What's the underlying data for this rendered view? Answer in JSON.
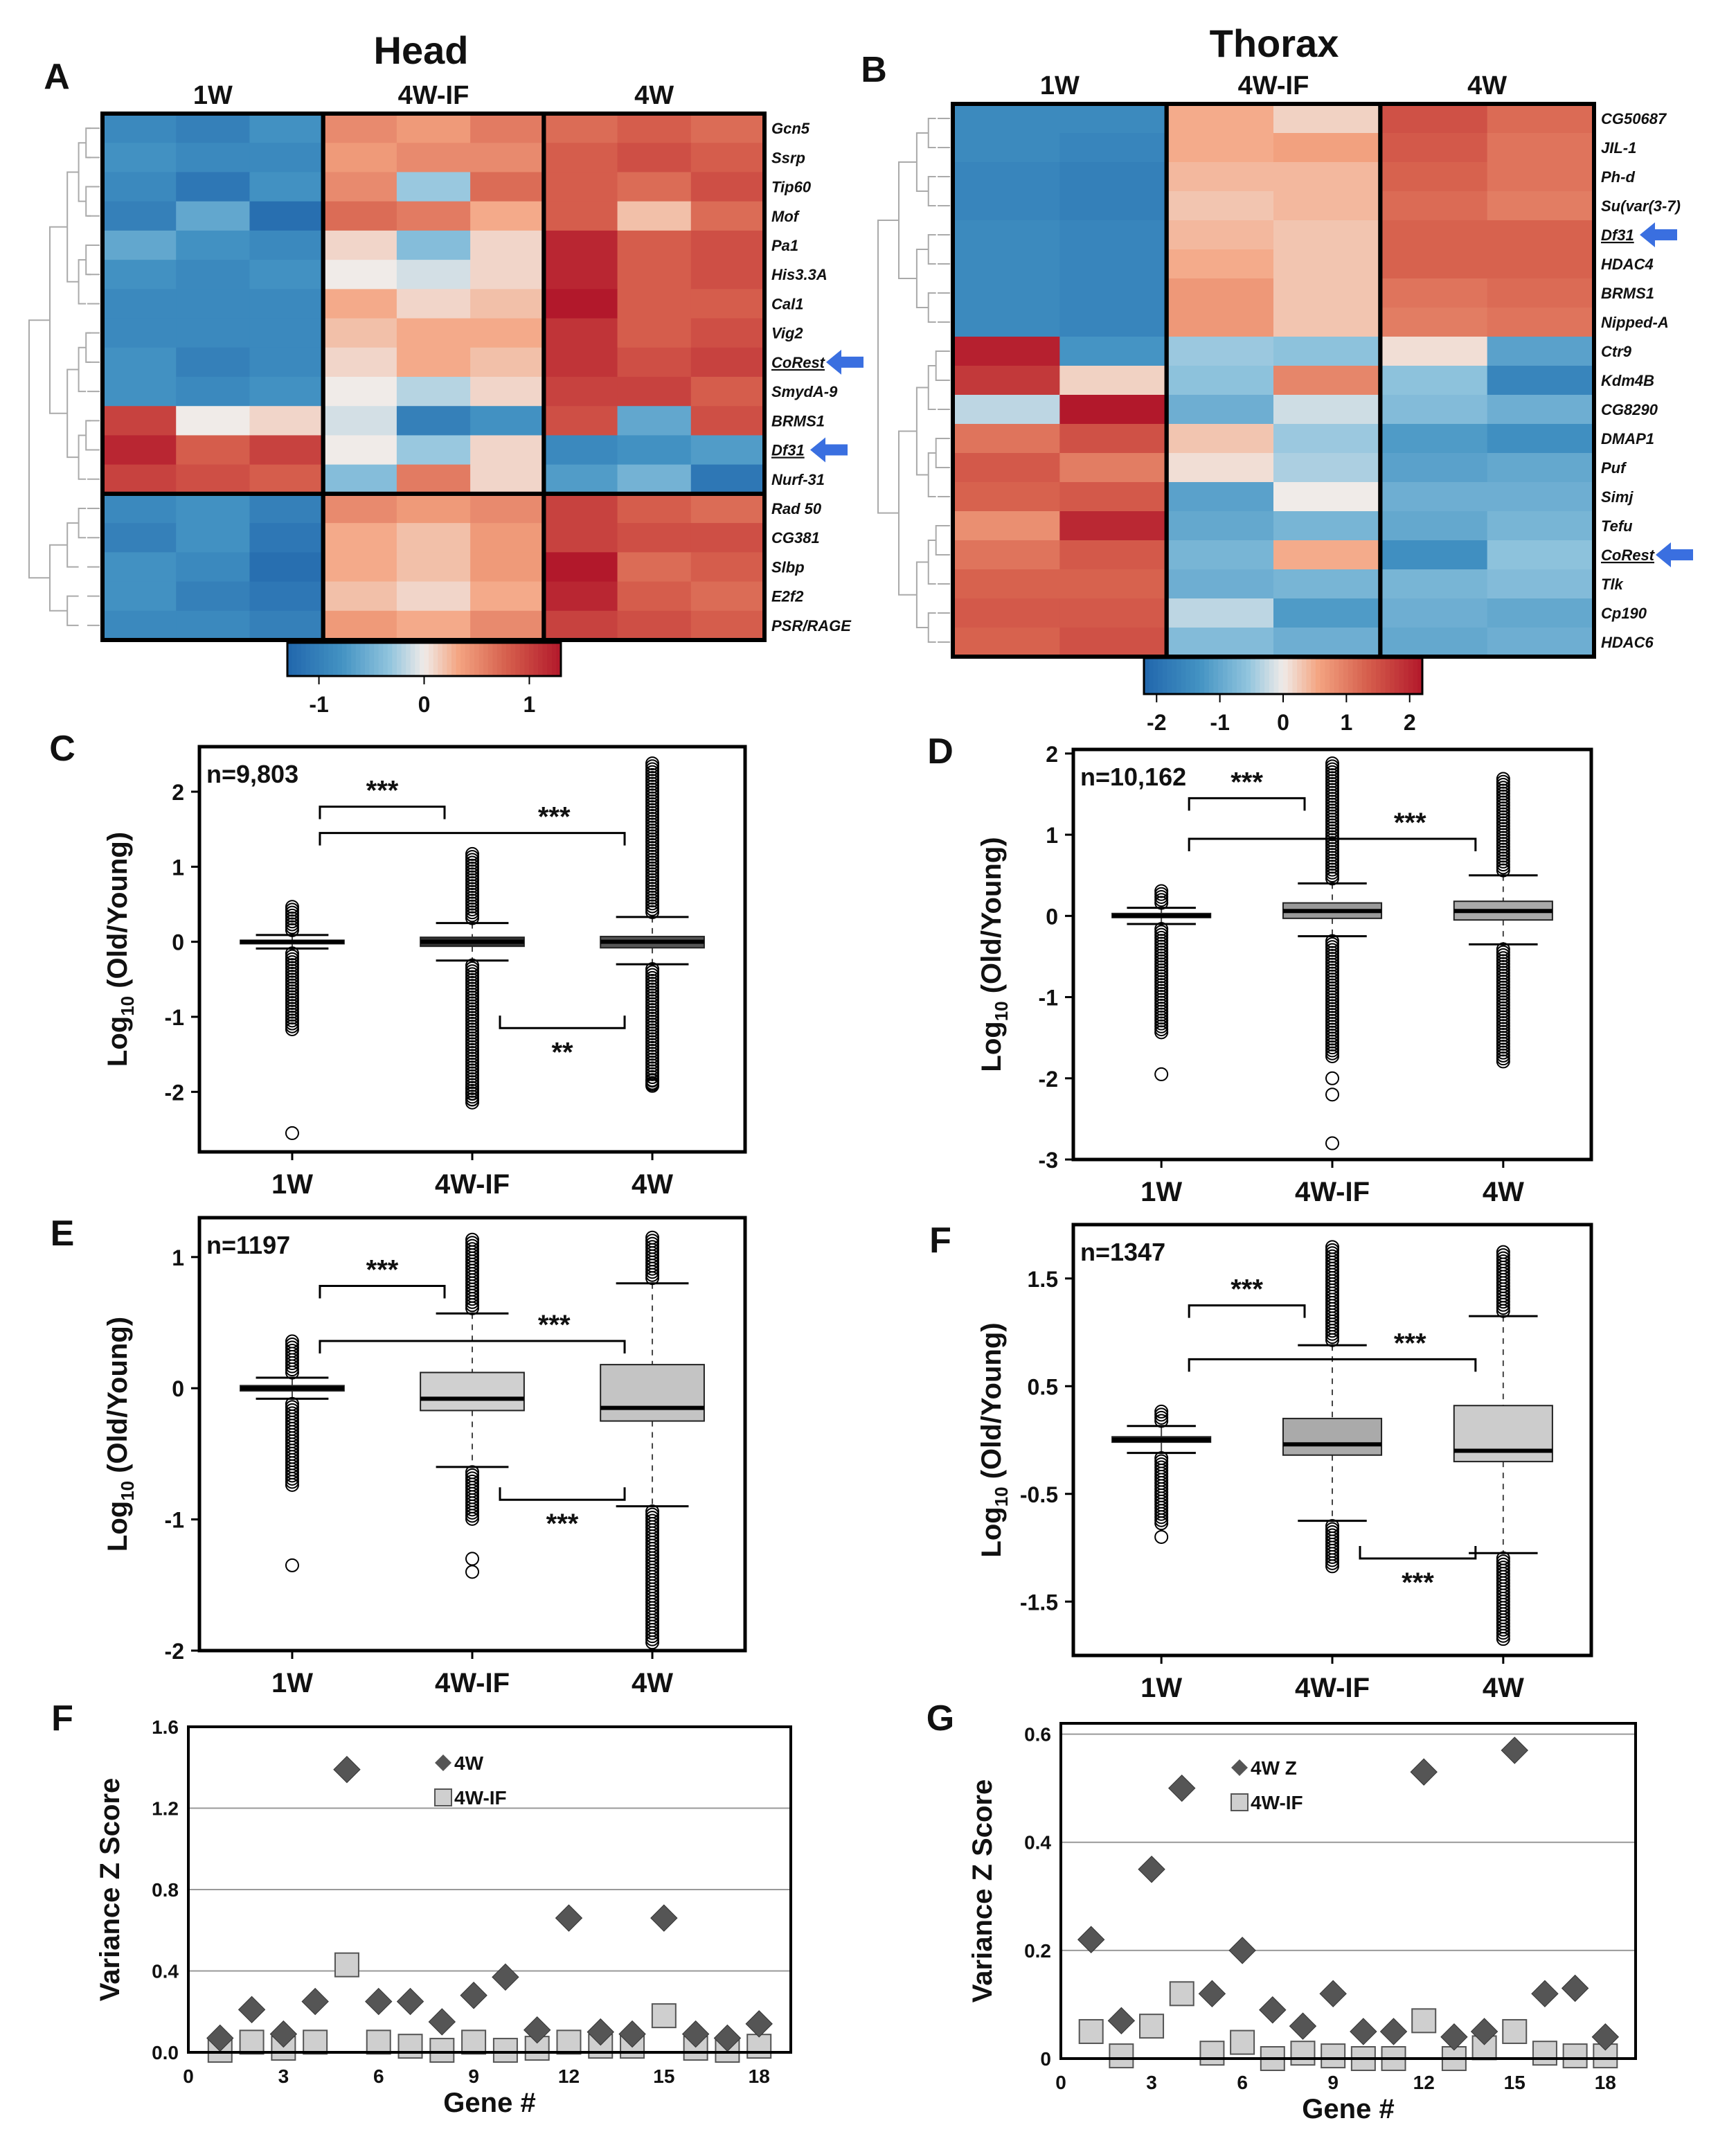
{
  "panels": {
    "A": {
      "label": "A",
      "title": "Head",
      "groups": [
        "1W",
        "4W-IF",
        "4W"
      ],
      "genes": [
        "Gcn5",
        "Ssrp",
        "Tip60",
        "Mof",
        "Pa1",
        "His3.3A",
        "Cal1",
        "Vig2",
        "CoRest",
        "SmydA-9",
        "BRMS1",
        "Df31",
        "Nurf-31",
        "Rad 50",
        "CG381",
        "Slbp",
        "E2f2",
        "PSR/RAGE"
      ],
      "underlined_genes": [
        "CoRest",
        "Df31"
      ],
      "arrow_genes": [
        "CoRest",
        "Df31"
      ],
      "colorbar_ticks": [
        "-1",
        "0",
        "1"
      ],
      "colorbar_range": [
        -1.3,
        1.3
      ],
      "row_cluster_break_after": 13,
      "matrix": [
        [
          -0.9,
          -1.0,
          -0.8,
          0.5,
          0.4,
          0.6,
          0.7,
          0.8,
          0.7
        ],
        [
          -0.8,
          -0.9,
          -0.9,
          0.4,
          0.5,
          0.5,
          0.8,
          0.9,
          0.8
        ],
        [
          -0.9,
          -1.1,
          -0.8,
          0.5,
          -0.3,
          0.7,
          0.8,
          0.7,
          0.9
        ],
        [
          -1.0,
          -0.6,
          -1.2,
          0.7,
          0.6,
          0.3,
          0.8,
          0.2,
          0.7
        ],
        [
          -0.6,
          -0.8,
          -0.9,
          0.1,
          -0.4,
          0.1,
          1.2,
          0.8,
          0.9
        ],
        [
          -0.8,
          -0.9,
          -0.8,
          0.0,
          -0.1,
          0.1,
          1.2,
          0.8,
          0.9
        ],
        [
          -0.9,
          -0.9,
          -0.9,
          0.3,
          0.1,
          0.2,
          1.3,
          0.8,
          0.8
        ],
        [
          -0.9,
          -0.9,
          -0.9,
          0.2,
          0.3,
          0.3,
          1.1,
          0.8,
          0.9
        ],
        [
          -0.8,
          -1.0,
          -0.9,
          0.1,
          0.3,
          0.2,
          1.1,
          0.9,
          1.0
        ],
        [
          -0.8,
          -0.9,
          -0.8,
          0.0,
          -0.2,
          0.1,
          1.0,
          1.0,
          0.8
        ],
        [
          1.0,
          0.0,
          0.1,
          -0.1,
          -1.0,
          -0.8,
          0.9,
          -0.6,
          0.9
        ],
        [
          1.2,
          0.8,
          1.0,
          0.0,
          -0.3,
          0.1,
          -0.9,
          -0.8,
          -0.7
        ],
        [
          1.0,
          0.9,
          0.8,
          -0.4,
          0.6,
          0.1,
          -0.7,
          -0.5,
          -1.1
        ],
        [
          -0.9,
          -0.8,
          -1.0,
          0.5,
          0.4,
          0.5,
          1.0,
          0.8,
          0.7
        ],
        [
          -1.0,
          -0.8,
          -1.1,
          0.3,
          0.2,
          0.4,
          1.0,
          0.9,
          0.9
        ],
        [
          -0.8,
          -0.9,
          -1.2,
          0.3,
          0.2,
          0.4,
          1.3,
          0.7,
          0.8
        ],
        [
          -0.8,
          -1.0,
          -1.1,
          0.2,
          0.1,
          0.3,
          1.2,
          0.8,
          0.7
        ],
        [
          -0.9,
          -0.9,
          -1.0,
          0.4,
          0.3,
          0.5,
          1.0,
          0.9,
          0.8
        ]
      ]
    },
    "B": {
      "label": "B",
      "title": "Thorax",
      "groups": [
        "1W",
        "4W-IF",
        "4W"
      ],
      "genes": [
        "CG50687",
        "JIL-1",
        "Ph-d",
        "Su(var(3-7)",
        "Df31",
        "HDAC4",
        "BRMS1",
        "Nipped-A",
        "Ctr9",
        "Kdm4B",
        "CG8290",
        "DMAP1",
        "Puf",
        "Simj",
        "Tefu",
        "CoRest",
        "Tlk",
        "Cp190",
        "HDAC6"
      ],
      "underlined_genes": [
        "Df31",
        "CoRest"
      ],
      "arrow_genes": [
        "Df31",
        "CoRest"
      ],
      "colorbar_ticks": [
        "-2",
        "-1",
        "0",
        "1",
        "2"
      ],
      "colorbar_range": [
        -2.2,
        2.2
      ],
      "row_cluster_break_after": 8,
      "matrix": [
        [
          -1.5,
          -1.5,
          0.5,
          0.2,
          1.5,
          1.2
        ],
        [
          -1.5,
          -1.6,
          0.5,
          0.6,
          1.4,
          1.1
        ],
        [
          -1.6,
          -1.7,
          0.4,
          0.4,
          1.3,
          1.1
        ],
        [
          -1.6,
          -1.7,
          0.3,
          0.4,
          1.2,
          1.0
        ],
        [
          -1.5,
          -1.6,
          0.4,
          0.3,
          1.3,
          1.3
        ],
        [
          -1.5,
          -1.6,
          0.5,
          0.3,
          1.3,
          1.3
        ],
        [
          -1.5,
          -1.6,
          0.7,
          0.3,
          1.1,
          1.2
        ],
        [
          -1.5,
          -1.6,
          0.7,
          0.3,
          1.0,
          1.1
        ],
        [
          2.1,
          -1.3,
          -0.5,
          -0.6,
          0.1,
          -1.1
        ],
        [
          1.8,
          0.2,
          -0.6,
          0.9,
          -0.6,
          -1.6
        ],
        [
          -0.3,
          2.2,
          -0.9,
          -0.2,
          -0.7,
          -0.9
        ],
        [
          1.1,
          1.5,
          0.3,
          -0.5,
          -1.2,
          -1.4
        ],
        [
          1.4,
          1.0,
          0.1,
          -0.4,
          -1.1,
          -1.0
        ],
        [
          1.3,
          1.4,
          -1.1,
          0.0,
          -0.9,
          -0.9
        ],
        [
          0.8,
          2.0,
          -1.0,
          -0.8,
          -1.0,
          -0.8
        ],
        [
          1.1,
          1.4,
          -0.8,
          0.5,
          -1.4,
          -0.6
        ],
        [
          1.3,
          1.3,
          -0.9,
          -0.8,
          -0.8,
          -0.7
        ],
        [
          1.4,
          1.4,
          -0.3,
          -1.2,
          -0.9,
          -1.0
        ],
        [
          1.3,
          1.5,
          -0.7,
          -0.9,
          -1.0,
          -0.9
        ]
      ]
    },
    "C": {
      "label": "C",
      "n_text": "n=9,803",
      "ylabel_main": "Log",
      "ylabel_sub": "10",
      "ylabel_rest": " (Old/Young)",
      "categories": [
        "1W",
        "4W-IF",
        "4W"
      ],
      "ylim": [
        -2.8,
        2.6
      ],
      "yticks": [
        -2,
        -1,
        0,
        1,
        2
      ],
      "boxes": [
        {
          "lw": -0.09,
          "q1": -0.02,
          "med": 0.0,
          "q3": 0.02,
          "uw": 0.09
        },
        {
          "lw": -0.25,
          "q1": -0.06,
          "med": 0.0,
          "q3": 0.06,
          "uw": 0.25
        },
        {
          "lw": -0.3,
          "q1": -0.08,
          "med": 0.0,
          "q3": 0.07,
          "uw": 0.33
        }
      ],
      "box_fill": [
        "#111111",
        "#333333",
        "#555555"
      ],
      "outlier_ranges": [
        [
          -1.2,
          0.48
        ],
        [
          -2.15,
          1.18
        ],
        [
          -1.95,
          2.38
        ]
      ],
      "extra_outliers": [
        [
          -2.55
        ],
        [
          -1.95,
          -2.02,
          -2.1
        ],
        [
          -1.85,
          -1.9
        ]
      ],
      "brackets": [
        {
          "from": 0,
          "to": 1,
          "y": 1.8,
          "label": "***"
        },
        {
          "from": 0,
          "to": 2,
          "y": 1.45,
          "label": "***"
        },
        {
          "from": 1,
          "to": 2,
          "y": -1.15,
          "label": "**",
          "below": true
        }
      ]
    },
    "D": {
      "label": "D",
      "n_text": "n=10,162",
      "ylabel_main": "Log",
      "ylabel_sub": "10",
      "ylabel_rest": " (Old/Young)",
      "categories": [
        "1W",
        "4W-IF",
        "4W"
      ],
      "ylim": [
        -3.0,
        2.05
      ],
      "yticks": [
        -3,
        -2,
        -1,
        0,
        1,
        2
      ],
      "boxes": [
        {
          "lw": -0.1,
          "q1": -0.02,
          "med": 0.0,
          "q3": 0.03,
          "uw": 0.1
        },
        {
          "lw": -0.25,
          "q1": -0.03,
          "med": 0.06,
          "q3": 0.16,
          "uw": 0.4
        },
        {
          "lw": -0.35,
          "q1": -0.05,
          "med": 0.06,
          "q3": 0.18,
          "uw": 0.5
        }
      ],
      "box_fill": [
        "#111111",
        "#999999",
        "#aaaaaa"
      ],
      "outlier_ranges": [
        [
          -1.45,
          0.32
        ],
        [
          -1.75,
          1.9
        ],
        [
          -1.8,
          1.7
        ]
      ],
      "extra_outliers": [
        [
          -1.95
        ],
        [
          -2.0,
          -2.2,
          -2.8
        ],
        []
      ],
      "brackets": [
        {
          "from": 0,
          "to": 1,
          "y": 1.45,
          "label": "***"
        },
        {
          "from": 0,
          "to": 2,
          "y": 0.95,
          "label": "***"
        }
      ]
    },
    "E": {
      "label": "E",
      "n_text": "n=1197",
      "ylabel_main": "Log",
      "ylabel_sub": "10",
      "ylabel_rest": " (Old/Young)",
      "categories": [
        "1W",
        "4W-IF",
        "4W"
      ],
      "ylim": [
        -2.0,
        1.3
      ],
      "yticks": [
        -2,
        -1,
        0,
        1
      ],
      "boxes": [
        {
          "lw": -0.08,
          "q1": -0.02,
          "med": 0.0,
          "q3": 0.02,
          "uw": 0.08
        },
        {
          "lw": -0.6,
          "q1": -0.17,
          "med": -0.08,
          "q3": 0.12,
          "uw": 0.57
        },
        {
          "lw": -0.9,
          "q1": -0.25,
          "med": -0.15,
          "q3": 0.18,
          "uw": 0.8
        }
      ],
      "box_fill": [
        "#111111",
        "#d0d0d0",
        "#c4c4c4"
      ],
      "outlier_ranges": [
        [
          -0.75,
          0.38
        ],
        [
          -1.0,
          1.15
        ],
        [
          -1.95,
          1.15
        ]
      ],
      "extra_outliers": [
        [
          -1.35
        ],
        [
          -1.3,
          -1.4
        ],
        []
      ],
      "brackets": [
        {
          "from": 0,
          "to": 1,
          "y": 0.78,
          "label": "***"
        },
        {
          "from": 0,
          "to": 2,
          "y": 0.36,
          "label": "***"
        },
        {
          "from": 1,
          "to": 2,
          "y": -0.85,
          "label": "***",
          "below": true
        }
      ]
    },
    "F1": {
      "label": "F",
      "n_text": "n=1347",
      "ylabel_main": "Log",
      "ylabel_sub": "10",
      "ylabel_rest": " (Old/Young)",
      "categories": [
        "1W",
        "4W-IF",
        "4W"
      ],
      "ylim": [
        -2.0,
        2.0
      ],
      "yticks": [
        -1.5,
        -0.5,
        0.5,
        1.5
      ],
      "boxes": [
        {
          "lw": -0.12,
          "q1": -0.02,
          "med": 0.0,
          "q3": 0.03,
          "uw": 0.13
        },
        {
          "lw": -0.75,
          "q1": -0.14,
          "med": -0.04,
          "q3": 0.2,
          "uw": 0.88
        },
        {
          "lw": -1.05,
          "q1": -0.2,
          "med": -0.1,
          "q3": 0.32,
          "uw": 1.15
        }
      ],
      "box_fill": [
        "#111111",
        "#aaaaaa",
        "#cccccc"
      ],
      "outlier_ranges": [
        [
          -0.8,
          0.28
        ],
        [
          -1.2,
          1.8
        ],
        [
          -1.85,
          1.75
        ]
      ],
      "extra_outliers": [
        [
          -0.9
        ],
        [],
        []
      ],
      "brackets": [
        {
          "from": 0,
          "to": 1,
          "y": 1.25,
          "label": "***"
        },
        {
          "from": 0,
          "to": 2,
          "y": 0.75,
          "label": "***"
        },
        {
          "from": 1,
          "to": 2,
          "y": -1.1,
          "label": "***",
          "below": true
        }
      ]
    },
    "F2": {
      "label": "F",
      "ylabel": "Variance Z Score",
      "xlabel": "Gene #",
      "xticks": [
        0,
        3,
        6,
        9,
        12,
        15,
        18
      ],
      "yticks": [
        "0.0",
        "0.4",
        "0.8",
        "1.2",
        "1.6"
      ],
      "ylim": [
        0,
        1.6
      ],
      "legend": [
        "4W",
        "4W-IF"
      ],
      "series_4W": [
        0.07,
        0.21,
        0.09,
        0.25,
        1.39,
        0.25,
        0.25,
        0.15,
        0.28,
        0.37,
        0.11,
        0.66,
        0.1,
        0.09,
        0.66,
        0.09,
        0.07,
        0.14
      ],
      "series_4WIF": [
        0.01,
        0.05,
        0.02,
        0.05,
        0.43,
        0.05,
        0.03,
        0.01,
        0.05,
        0.01,
        0.02,
        0.05,
        0.03,
        0.03,
        0.18,
        0.02,
        0.01,
        0.03
      ]
    },
    "G": {
      "label": "G",
      "ylabel": "Variance Z Score",
      "xlabel": "Gene #",
      "xticks": [
        0,
        3,
        6,
        9,
        12,
        15,
        18
      ],
      "yticks": [
        "0",
        "0.2",
        "0.4",
        "0.6"
      ],
      "ylim": [
        0,
        0.62
      ],
      "legend": [
        "4W Z",
        "4W-IF"
      ],
      "series_4W": [
        0.22,
        0.07,
        0.35,
        0.5,
        0.12,
        0.2,
        0.09,
        0.06,
        0.12,
        0.05,
        0.05,
        0.53,
        0.04,
        0.05,
        0.57,
        0.12,
        0.13,
        0.04
      ],
      "series_4WIF": [
        0.05,
        0.005,
        0.06,
        0.12,
        0.01,
        0.03,
        0.0,
        0.01,
        0.005,
        0.0,
        0.0,
        0.07,
        0.0,
        0.02,
        0.05,
        0.01,
        0.005,
        0.005
      ]
    }
  },
  "chart_data": [
    {
      "type": "heatmap",
      "title": "Head",
      "panel": "A"
    },
    {
      "type": "heatmap",
      "title": "Thorax",
      "panel": "B"
    },
    {
      "type": "box",
      "panel": "C",
      "n": "n=9,803",
      "categories": [
        "1W",
        "4W-IF",
        "4W"
      ]
    },
    {
      "type": "box",
      "panel": "D",
      "n": "n=10,162",
      "categories": [
        "1W",
        "4W-IF",
        "4W"
      ]
    },
    {
      "type": "box",
      "panel": "E",
      "n": "n=1197",
      "categories": [
        "1W",
        "4W-IF",
        "4W"
      ]
    },
    {
      "type": "box",
      "panel": "F",
      "n": "n=1347",
      "categories": [
        "1W",
        "4W-IF",
        "4W"
      ]
    },
    {
      "type": "scatter",
      "panel": "F",
      "xlabel": "Gene #",
      "ylabel": "Variance Z Score"
    },
    {
      "type": "scatter",
      "panel": "G",
      "xlabel": "Gene #",
      "ylabel": "Variance Z Score"
    }
  ]
}
